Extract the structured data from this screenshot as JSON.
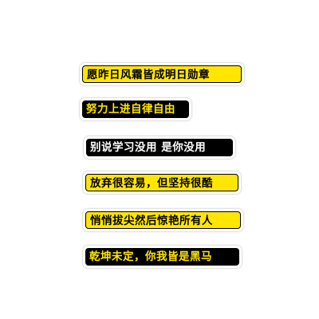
{
  "stickers": [
    {
      "text": "愿昨日风霜皆成明日勋章",
      "style": "black-on-yellow"
    },
    {
      "text": "努力上进自律自由",
      "style": "yellow-on-black"
    },
    {
      "text": "别说学习没用 是你没用",
      "style": "white-on-black"
    },
    {
      "text": "放弃很容易，但坚持很酷",
      "style": "black-on-yellow"
    },
    {
      "text": "悄悄拔尖然后惊艳所有人",
      "style": "black-on-yellow"
    },
    {
      "text": "乾坤未定，你我皆是黑马",
      "style": "yellow-on-black"
    }
  ],
  "colors": {
    "yellow": "#ffe600",
    "black": "#000000",
    "white": "#ffffff",
    "background": "#ffffff"
  }
}
